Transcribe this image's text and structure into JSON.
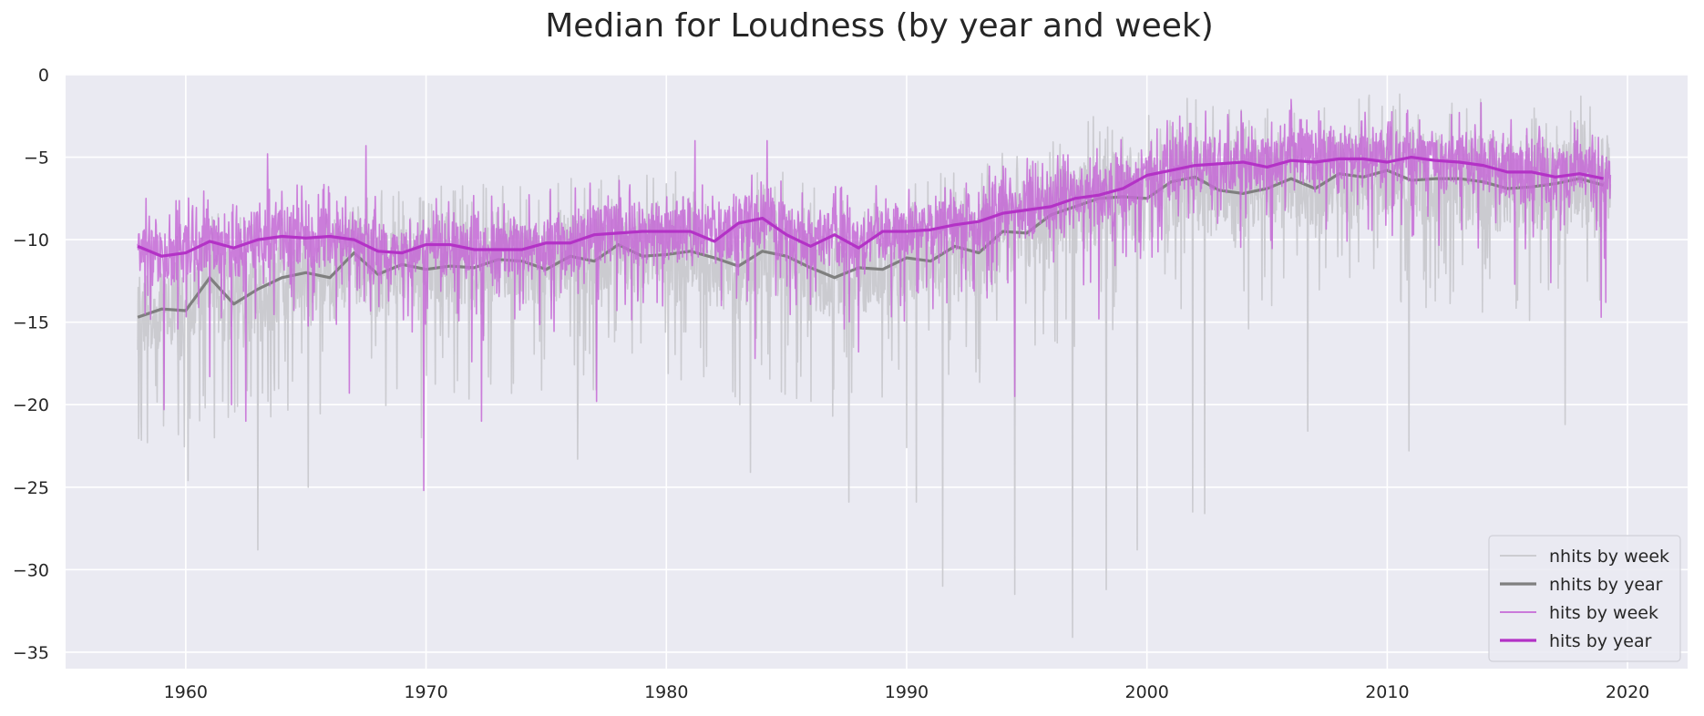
{
  "chart_data": {
    "type": "line",
    "title": "Median for Loudness (by year and week)",
    "xlabel": "",
    "ylabel": "",
    "xlim": [
      1955,
      2022.5
    ],
    "ylim": [
      -36,
      0
    ],
    "x_ticks": [
      1960,
      1970,
      1980,
      1990,
      2000,
      2010,
      2020
    ],
    "y_ticks": [
      0,
      -5,
      -10,
      -15,
      -20,
      -25,
      -30,
      -35
    ],
    "grid": true,
    "legend_position": "lower-right",
    "colors": {
      "background": "#eaeaf2",
      "grid": "#ffffff",
      "nhits_week": "#c8c8cc",
      "nhits_year": "#7f7f7f",
      "hits_week": "#c66ad6",
      "hits_year": "#b332c6"
    },
    "series": [
      {
        "name": "nhits by week",
        "style": "thin",
        "key": "nhits_week",
        "x_range": [
          1958.0,
          2019.3
        ],
        "weekly_from_yearly": "nhits by year",
        "noise_amplitude": 3.4,
        "extremes": [
          {
            "x": 1958.4,
            "y": -22.3
          },
          {
            "x": 1960.1,
            "y": -24.6
          },
          {
            "x": 1961.2,
            "y": -22.0
          },
          {
            "x": 1963.0,
            "y": -28.8
          },
          {
            "x": 1965.1,
            "y": -25.0
          },
          {
            "x": 1969.8,
            "y": -22.0
          },
          {
            "x": 1976.3,
            "y": -23.3
          },
          {
            "x": 1983.5,
            "y": -24.1
          },
          {
            "x": 1987.6,
            "y": -25.9
          },
          {
            "x": 1990.0,
            "y": -22.6
          },
          {
            "x": 1990.4,
            "y": -25.9
          },
          {
            "x": 1991.5,
            "y": -31.0
          },
          {
            "x": 1994.5,
            "y": -31.5
          },
          {
            "x": 1996.9,
            "y": -34.1
          },
          {
            "x": 1998.3,
            "y": -31.2
          },
          {
            "x": 1999.6,
            "y": -28.8
          },
          {
            "x": 2001.9,
            "y": -26.5
          },
          {
            "x": 2002.4,
            "y": -26.6
          },
          {
            "x": 2006.7,
            "y": -21.6
          },
          {
            "x": 2010.9,
            "y": -22.8
          },
          {
            "x": 2017.4,
            "y": -21.2
          },
          {
            "x": 2019.3,
            "y": -21.9
          }
        ]
      },
      {
        "name": "nhits by year",
        "style": "thick",
        "key": "nhits_year",
        "x": [
          1958,
          1959,
          1960,
          1961,
          1962,
          1963,
          1964,
          1965,
          1966,
          1967,
          1968,
          1969,
          1970,
          1971,
          1972,
          1973,
          1974,
          1975,
          1976,
          1977,
          1978,
          1979,
          1980,
          1981,
          1982,
          1983,
          1984,
          1985,
          1986,
          1987,
          1988,
          1989,
          1990,
          1991,
          1992,
          1993,
          1994,
          1995,
          1996,
          1997,
          1998,
          1999,
          2000,
          2001,
          2002,
          2003,
          2004,
          2005,
          2006,
          2007,
          2008,
          2009,
          2010,
          2011,
          2012,
          2013,
          2014,
          2015,
          2016,
          2017,
          2018,
          2019
        ],
        "values": [
          -14.7,
          -14.2,
          -14.3,
          -12.3,
          -13.9,
          -13.0,
          -12.3,
          -12.0,
          -12.3,
          -10.8,
          -12.1,
          -11.5,
          -11.8,
          -11.6,
          -11.7,
          -11.2,
          -11.3,
          -11.8,
          -11.0,
          -11.3,
          -10.3,
          -11.0,
          -10.9,
          -10.7,
          -11.1,
          -11.6,
          -10.7,
          -11.0,
          -11.7,
          -12.3,
          -11.7,
          -11.8,
          -11.1,
          -11.3,
          -10.4,
          -10.8,
          -9.5,
          -9.6,
          -8.5,
          -8.0,
          -7.5,
          -7.4,
          -7.5,
          -6.5,
          -6.2,
          -7.0,
          -7.2,
          -6.9,
          -6.3,
          -6.9,
          -6.0,
          -6.2,
          -5.8,
          -6.4,
          -6.3,
          -6.3,
          -6.5,
          -6.9,
          -6.8,
          -6.6,
          -6.3,
          -6.7
        ]
      },
      {
        "name": "hits by week",
        "style": "thin",
        "key": "hits_week",
        "x_range": [
          1958.0,
          2019.3
        ],
        "weekly_from_yearly": "hits by year",
        "noise_amplitude": 2.2,
        "extremes": [
          {
            "x": 1958.3,
            "y": -14.5
          },
          {
            "x": 1959.1,
            "y": -20.3
          },
          {
            "x": 1961.0,
            "y": -18.3
          },
          {
            "x": 1961.9,
            "y": -20.0
          },
          {
            "x": 1962.5,
            "y": -21.0
          },
          {
            "x": 1963.4,
            "y": -4.8
          },
          {
            "x": 1966.8,
            "y": -19.3
          },
          {
            "x": 1967.5,
            "y": -4.3
          },
          {
            "x": 1969.9,
            "y": -25.2
          },
          {
            "x": 1971.9,
            "y": -17.4
          },
          {
            "x": 1972.3,
            "y": -21.0
          },
          {
            "x": 1977.1,
            "y": -19.8
          },
          {
            "x": 1981.2,
            "y": -4.0
          },
          {
            "x": 1983.7,
            "y": -17.2
          },
          {
            "x": 1984.2,
            "y": -4.0
          },
          {
            "x": 1988.0,
            "y": -16.8
          },
          {
            "x": 1994.5,
            "y": -19.5
          },
          {
            "x": 1998.0,
            "y": -14.8
          },
          {
            "x": 2006.0,
            "y": -1.5
          },
          {
            "x": 2013.9,
            "y": -1.7
          },
          {
            "x": 2015.3,
            "y": -12.7
          },
          {
            "x": 2016.8,
            "y": -12.6
          },
          {
            "x": 2018.9,
            "y": -14.7
          },
          {
            "x": 2019.1,
            "y": -13.8
          }
        ]
      },
      {
        "name": "hits by year",
        "style": "thick",
        "key": "hits_year",
        "x": [
          1958,
          1959,
          1960,
          1961,
          1962,
          1963,
          1964,
          1965,
          1966,
          1967,
          1968,
          1969,
          1970,
          1971,
          1972,
          1973,
          1974,
          1975,
          1976,
          1977,
          1978,
          1979,
          1980,
          1981,
          1982,
          1983,
          1984,
          1985,
          1986,
          1987,
          1988,
          1989,
          1990,
          1991,
          1992,
          1993,
          1994,
          1995,
          1996,
          1997,
          1998,
          1999,
          2000,
          2001,
          2002,
          2003,
          2004,
          2005,
          2006,
          2007,
          2008,
          2009,
          2010,
          2011,
          2012,
          2013,
          2014,
          2015,
          2016,
          2017,
          2018,
          2019
        ],
        "values": [
          -10.4,
          -11.0,
          -10.8,
          -10.1,
          -10.5,
          -10.0,
          -9.8,
          -9.9,
          -9.8,
          -10.0,
          -10.7,
          -10.8,
          -10.3,
          -10.3,
          -10.6,
          -10.6,
          -10.6,
          -10.2,
          -10.2,
          -9.7,
          -9.6,
          -9.5,
          -9.5,
          -9.5,
          -10.1,
          -9.0,
          -8.7,
          -9.7,
          -10.4,
          -9.7,
          -10.5,
          -9.5,
          -9.5,
          -9.4,
          -9.1,
          -8.9,
          -8.4,
          -8.2,
          -8.0,
          -7.5,
          -7.3,
          -6.9,
          -6.1,
          -5.8,
          -5.5,
          -5.4,
          -5.3,
          -5.6,
          -5.2,
          -5.3,
          -5.1,
          -5.1,
          -5.3,
          -5.0,
          -5.2,
          -5.3,
          -5.5,
          -5.9,
          -5.9,
          -6.2,
          -6.0,
          -6.3
        ]
      }
    ]
  }
}
